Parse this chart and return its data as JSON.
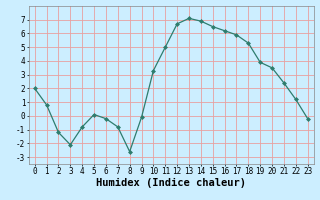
{
  "x": [
    0,
    1,
    2,
    3,
    4,
    5,
    6,
    7,
    8,
    9,
    10,
    11,
    12,
    13,
    14,
    15,
    16,
    17,
    18,
    19,
    20,
    21,
    22,
    23
  ],
  "y": [
    2,
    0.8,
    -1.2,
    -2.1,
    -0.8,
    0.1,
    -0.2,
    -0.8,
    -2.6,
    -0.1,
    3.3,
    5.0,
    6.7,
    7.1,
    6.9,
    6.5,
    6.2,
    5.9,
    5.3,
    3.9,
    3.5,
    2.4,
    1.2,
    -0.2
  ],
  "line_color": "#2e7d6e",
  "marker": "D",
  "marker_size": 2.0,
  "bg_color": "#cceeff",
  "grid_color": "#e8a0a0",
  "xlabel": "Humidex (Indice chaleur)",
  "ylim": [
    -3.5,
    8.0
  ],
  "xlim": [
    -0.5,
    23.5
  ],
  "yticks": [
    -3,
    -2,
    -1,
    0,
    1,
    2,
    3,
    4,
    5,
    6,
    7
  ],
  "xticks": [
    0,
    1,
    2,
    3,
    4,
    5,
    6,
    7,
    8,
    9,
    10,
    11,
    12,
    13,
    14,
    15,
    16,
    17,
    18,
    19,
    20,
    21,
    22,
    23
  ],
  "tick_fontsize": 5.5,
  "xlabel_fontsize": 7.5
}
